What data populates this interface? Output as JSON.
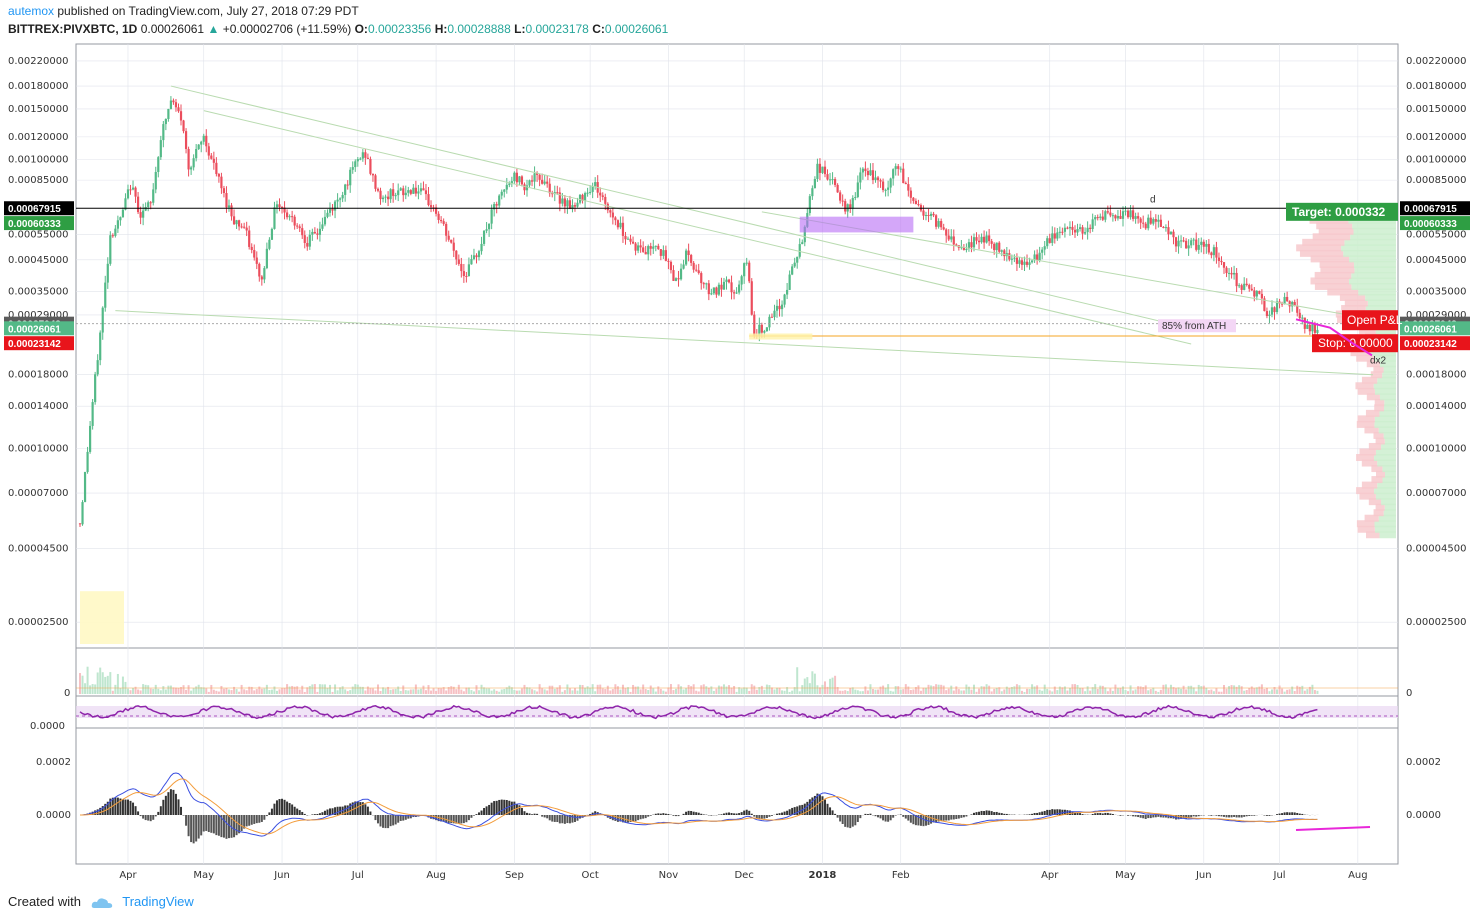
{
  "header": {
    "user": "autemox",
    "published_text": " published on TradingView.com, July 27, 2018 07:29 PDT",
    "symbol": "BITTREX:PIVXBTC, 1D",
    "last": "0.00026061",
    "change": "+0.00002706 (+11.59%)",
    "open_label": "O:",
    "open": "0.00023356",
    "high_label": "H:",
    "high": "0.00028888",
    "low_label": "L:",
    "low": "0.00023178",
    "close_label": "C:",
    "close": "0.00026061"
  },
  "footer": {
    "created_with": "Created with",
    "brand": "TradingView"
  },
  "colors": {
    "up": "#53b987",
    "down": "#eb4d5c",
    "grid": "#e0e3eb",
    "trend": "#b9dbb0",
    "macd": "#3b4fe0",
    "signal": "#f39c3b",
    "rsi": "#8e24aa",
    "target": "#2e9e43",
    "stop": "#e8141b"
  },
  "chart_data": {
    "type": "candlestick",
    "y_scale": "log",
    "price_ticks": [
      "0.00220000",
      "0.00180000",
      "0.00150000",
      "0.00120000",
      "0.00100000",
      "0.00085000",
      "0.00055000",
      "0.00045000",
      "0.00035000",
      "0.00029000",
      "0.00018000",
      "0.00014000",
      "0.00010000",
      "0.00007000",
      "0.00004500",
      "0.00002500"
    ],
    "price_tick_values": [
      0.0022,
      0.0018,
      0.0015,
      0.0012,
      0.001,
      0.00085,
      0.00055,
      0.00045,
      0.00035,
      0.00029,
      0.00018,
      0.00014,
      0.0001,
      7e-05,
      4.5e-05,
      2.5e-05
    ],
    "price_tags": [
      {
        "label": "0.00067915",
        "value": 0.00067915,
        "color": "#000000"
      },
      {
        "label": "0.00060333",
        "value": 0.00060333,
        "color": "#2e9e43"
      },
      {
        "label": "0.00027043",
        "value": 0.00027043,
        "color": "#5b5b5b"
      },
      {
        "label": "0.00026061",
        "value": 0.00026061,
        "color": "#53b987"
      },
      {
        "label": "0.00023142",
        "value": 0.00023142,
        "color": "#e8141b"
      }
    ],
    "x_labels": [
      "Apr",
      "May",
      "Jun",
      "Jul",
      "Aug",
      "Sep",
      "Oct",
      "Nov",
      "Dec",
      "2018",
      "Feb",
      "Apr",
      "May",
      "Jun",
      "Jul",
      "Aug"
    ],
    "x_label_bold": [
      false,
      false,
      false,
      false,
      false,
      false,
      false,
      false,
      false,
      true,
      false,
      false,
      false,
      false,
      false,
      false
    ],
    "x_label_days": [
      19,
      49,
      80,
      110,
      141,
      172,
      202,
      233,
      263,
      294,
      325,
      384,
      414,
      445,
      475,
      506
    ],
    "series_close": [
      {
        "d": 0,
        "c": 5.5e-05
      },
      {
        "d": 4,
        "c": 0.00012
      },
      {
        "d": 8,
        "c": 0.00025
      },
      {
        "d": 12,
        "c": 0.00055
      },
      {
        "d": 16,
        "c": 0.00062
      },
      {
        "d": 20,
        "c": 0.00082
      },
      {
        "d": 24,
        "c": 0.00065
      },
      {
        "d": 28,
        "c": 0.0007
      },
      {
        "d": 32,
        "c": 0.0012
      },
      {
        "d": 36,
        "c": 0.0016
      },
      {
        "d": 40,
        "c": 0.0014
      },
      {
        "d": 43,
        "c": 0.00095
      },
      {
        "d": 46,
        "c": 0.00105
      },
      {
        "d": 49,
        "c": 0.0012
      },
      {
        "d": 53,
        "c": 0.00095
      },
      {
        "d": 57,
        "c": 0.00075
      },
      {
        "d": 61,
        "c": 0.00062
      },
      {
        "d": 65,
        "c": 0.00058
      },
      {
        "d": 69,
        "c": 0.00045
      },
      {
        "d": 72,
        "c": 0.00038
      },
      {
        "d": 75,
        "c": 0.00055
      },
      {
        "d": 78,
        "c": 0.00072
      },
      {
        "d": 82,
        "c": 0.00065
      },
      {
        "d": 86,
        "c": 0.0006
      },
      {
        "d": 90,
        "c": 0.00052
      },
      {
        "d": 94,
        "c": 0.00056
      },
      {
        "d": 98,
        "c": 0.00065
      },
      {
        "d": 102,
        "c": 0.00072
      },
      {
        "d": 106,
        "c": 0.00085
      },
      {
        "d": 110,
        "c": 0.001
      },
      {
        "d": 113,
        "c": 0.00105
      },
      {
        "d": 116,
        "c": 0.00085
      },
      {
        "d": 120,
        "c": 0.00072
      },
      {
        "d": 124,
        "c": 0.00078
      },
      {
        "d": 128,
        "c": 0.00076
      },
      {
        "d": 132,
        "c": 0.0008
      },
      {
        "d": 136,
        "c": 0.00075
      },
      {
        "d": 140,
        "c": 0.00068
      },
      {
        "d": 144,
        "c": 0.00058
      },
      {
        "d": 148,
        "c": 0.00048
      },
      {
        "d": 152,
        "c": 0.0004
      },
      {
        "d": 156,
        "c": 0.00045
      },
      {
        "d": 160,
        "c": 0.00055
      },
      {
        "d": 164,
        "c": 0.00068
      },
      {
        "d": 168,
        "c": 0.00078
      },
      {
        "d": 172,
        "c": 0.00088
      },
      {
        "d": 176,
        "c": 0.00082
      },
      {
        "d": 180,
        "c": 0.00086
      },
      {
        "d": 184,
        "c": 0.00085
      },
      {
        "d": 188,
        "c": 0.00075
      },
      {
        "d": 192,
        "c": 0.00072
      },
      {
        "d": 196,
        "c": 0.00068
      },
      {
        "d": 200,
        "c": 0.00078
      },
      {
        "d": 204,
        "c": 0.00082
      },
      {
        "d": 208,
        "c": 0.0007
      },
      {
        "d": 212,
        "c": 0.00062
      },
      {
        "d": 216,
        "c": 0.00055
      },
      {
        "d": 220,
        "c": 0.0005
      },
      {
        "d": 224,
        "c": 0.00048
      },
      {
        "d": 228,
        "c": 0.00052
      },
      {
        "d": 232,
        "c": 0.00045
      },
      {
        "d": 236,
        "c": 0.00038
      },
      {
        "d": 240,
        "c": 0.00047
      },
      {
        "d": 244,
        "c": 0.00042
      },
      {
        "d": 248,
        "c": 0.00036
      },
      {
        "d": 252,
        "c": 0.00035
      },
      {
        "d": 256,
        "c": 0.00037
      },
      {
        "d": 260,
        "c": 0.00034
      },
      {
        "d": 264,
        "c": 0.00045
      },
      {
        "d": 267,
        "c": 0.00025
      },
      {
        "d": 270,
        "c": 0.00026
      },
      {
        "d": 274,
        "c": 0.00028
      },
      {
        "d": 278,
        "c": 0.00032
      },
      {
        "d": 282,
        "c": 0.00042
      },
      {
        "d": 286,
        "c": 0.00052
      },
      {
        "d": 289,
        "c": 0.00075
      },
      {
        "d": 292,
        "c": 0.00095
      },
      {
        "d": 296,
        "c": 0.00088
      },
      {
        "d": 300,
        "c": 0.00078
      },
      {
        "d": 303,
        "c": 0.00065
      },
      {
        "d": 306,
        "c": 0.00072
      },
      {
        "d": 309,
        "c": 0.00088
      },
      {
        "d": 312,
        "c": 0.00092
      },
      {
        "d": 316,
        "c": 0.00082
      },
      {
        "d": 320,
        "c": 0.00078
      },
      {
        "d": 323,
        "c": 0.00098
      },
      {
        "d": 326,
        "c": 0.00085
      },
      {
        "d": 330,
        "c": 0.00072
      },
      {
        "d": 334,
        "c": 0.00066
      },
      {
        "d": 338,
        "c": 0.00062
      },
      {
        "d": 342,
        "c": 0.00058
      },
      {
        "d": 346,
        "c": 0.00052
      },
      {
        "d": 350,
        "c": 0.0005
      },
      {
        "d": 354,
        "c": 0.00052
      },
      {
        "d": 358,
        "c": 0.00054
      },
      {
        "d": 362,
        "c": 0.0005
      },
      {
        "d": 366,
        "c": 0.00048
      },
      {
        "d": 370,
        "c": 0.00046
      },
      {
        "d": 374,
        "c": 0.00043
      },
      {
        "d": 378,
        "c": 0.00045
      },
      {
        "d": 382,
        "c": 0.0005
      },
      {
        "d": 386,
        "c": 0.00055
      },
      {
        "d": 390,
        "c": 0.00058
      },
      {
        "d": 394,
        "c": 0.00057
      },
      {
        "d": 398,
        "c": 0.00058
      },
      {
        "d": 402,
        "c": 0.00062
      },
      {
        "d": 406,
        "c": 0.00065
      },
      {
        "d": 410,
        "c": 0.00061
      },
      {
        "d": 414,
        "c": 0.00066
      },
      {
        "d": 418,
        "c": 0.00062
      },
      {
        "d": 422,
        "c": 0.0006
      },
      {
        "d": 426,
        "c": 0.00063
      },
      {
        "d": 430,
        "c": 0.00058
      },
      {
        "d": 434,
        "c": 0.00052
      },
      {
        "d": 438,
        "c": 0.0005
      },
      {
        "d": 442,
        "c": 0.00051
      },
      {
        "d": 446,
        "c": 0.0005
      },
      {
        "d": 450,
        "c": 0.00047
      },
      {
        "d": 454,
        "c": 0.00042
      },
      {
        "d": 458,
        "c": 0.00038
      },
      {
        "d": 462,
        "c": 0.00036
      },
      {
        "d": 466,
        "c": 0.00034
      },
      {
        "d": 470,
        "c": 0.0003
      },
      {
        "d": 474,
        "c": 0.00031
      },
      {
        "d": 478,
        "c": 0.00033
      },
      {
        "d": 482,
        "c": 0.00029
      },
      {
        "d": 486,
        "c": 0.00026
      },
      {
        "d": 490,
        "c": 0.00026
      }
    ],
    "annotations": {
      "target_label": "Target: 0.000332",
      "open_label": "Open P&L",
      "stop_label": "Stop: 0.00000",
      "ath_label": "85% from ATH",
      "d_label": "d",
      "dx2_label": "dx2"
    },
    "volume_tick": "0",
    "rsi_tick": "0.0000",
    "macd_ticks": [
      "0.0002",
      "0.0000"
    ],
    "macd_tick_values": [
      0.0002,
      0.0
    ]
  }
}
